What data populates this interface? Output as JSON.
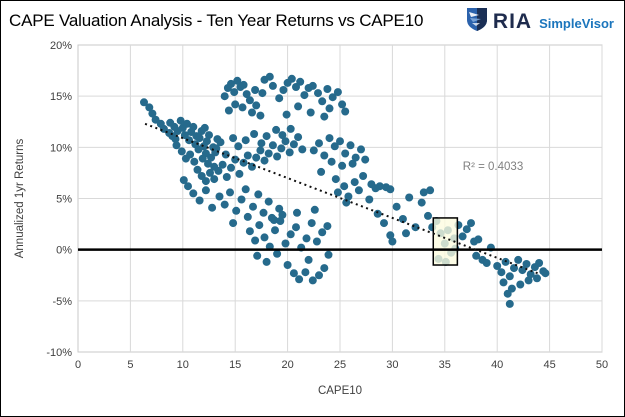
{
  "header": {
    "title": "CAPE Valuation Analysis - Ten Year Returns vs CAPE10",
    "brand": {
      "name": "RIA",
      "product": "SimpleVisor"
    }
  },
  "colors": {
    "point": "#266A8C",
    "grid": "#D9D9D9",
    "plot_border": "#C9C9C9",
    "axis_text": "#404040",
    "annotation": "#7F7F7F",
    "zero_line": "#000000",
    "trendline": "#111111",
    "box_fill": "#FCFCDF",
    "brand_navy": "#1E2B4D",
    "brand_blue": "#1B75BC"
  },
  "chart_data": {
    "type": "scatter",
    "title": "CAPE Valuation Analysis - Ten Year Returns vs CAPE10",
    "xlabel": "CAPE10",
    "ylabel": "Annualized 1yr Returns",
    "xlim": [
      0,
      50
    ],
    "ylim": [
      -10,
      20
    ],
    "xticks": [
      0,
      5,
      10,
      15,
      20,
      25,
      30,
      35,
      40,
      45,
      50
    ],
    "yticks": [
      -10,
      -5,
      0,
      5,
      10,
      15,
      20
    ],
    "ytick_suffix": "%",
    "grid": true,
    "legend": "none",
    "r_squared": 0.4033,
    "annotation": {
      "text": "R² = 0.4033",
      "x": 39.6,
      "y": 8.2
    },
    "trendline": {
      "style": "dotted",
      "x1": 6.4,
      "y1": 12.3,
      "x2": 44.1,
      "y2": -2.4
    },
    "zero_line": 0,
    "highlight_box": {
      "x1": 33.9,
      "x2": 36.2,
      "y1": -1.5,
      "y2": 3.1,
      "opacity": 0.78
    },
    "point_color": "#266A8C",
    "points": [
      [
        6.3,
        14.4
      ],
      [
        6.8,
        13.9
      ],
      [
        7.1,
        13.3
      ],
      [
        7.4,
        12.7
      ],
      [
        7.9,
        12.3
      ],
      [
        8.2,
        11.8
      ],
      [
        8.7,
        11.4
      ],
      [
        9.0,
        11.1
      ],
      [
        9.3,
        10.8
      ],
      [
        8.8,
        12.4
      ],
      [
        9.2,
        12.0
      ],
      [
        9.5,
        11.6
      ],
      [
        9.8,
        12.6
      ],
      [
        10.0,
        11.9
      ],
      [
        10.2,
        11.2
      ],
      [
        10.4,
        12.3
      ],
      [
        10.6,
        10.7
      ],
      [
        10.8,
        11.5
      ],
      [
        11.0,
        12.0
      ],
      [
        11.2,
        10.3
      ],
      [
        11.3,
        11.1
      ],
      [
        11.5,
        9.8
      ],
      [
        11.6,
        10.9
      ],
      [
        11.8,
        11.6
      ],
      [
        12.0,
        10.1
      ],
      [
        12.2,
        9.4
      ],
      [
        12.3,
        10.6
      ],
      [
        12.5,
        11.2
      ],
      [
        12.7,
        9.0
      ],
      [
        12.9,
        10.0
      ],
      [
        13.1,
        9.5
      ],
      [
        13.3,
        10.8
      ],
      [
        9.4,
        10.2
      ],
      [
        9.9,
        9.6
      ],
      [
        10.3,
        8.9
      ],
      [
        10.7,
        9.3
      ],
      [
        11.1,
        8.6
      ],
      [
        11.9,
        8.9
      ],
      [
        12.4,
        8.4
      ],
      [
        13.0,
        8.1
      ],
      [
        12.1,
        11.9
      ],
      [
        14.0,
        15.0
      ],
      [
        14.3,
        15.8
      ],
      [
        14.6,
        16.2
      ],
      [
        14.9,
        15.4
      ],
      [
        15.2,
        16.5
      ],
      [
        15.5,
        15.9
      ],
      [
        15.8,
        16.1
      ],
      [
        16.1,
        15.2
      ],
      [
        16.4,
        14.6
      ],
      [
        15.0,
        14.2
      ],
      [
        14.4,
        13.6
      ],
      [
        15.7,
        13.9
      ],
      [
        16.6,
        13.4
      ],
      [
        17.0,
        14.1
      ],
      [
        17.4,
        13.1
      ],
      [
        16.9,
        15.6
      ],
      [
        17.8,
        16.6
      ],
      [
        18.3,
        16.9
      ],
      [
        18.6,
        16.0
      ],
      [
        17.6,
        15.3
      ],
      [
        19.2,
        14.8
      ],
      [
        19.6,
        15.6
      ],
      [
        20.0,
        16.3
      ],
      [
        20.4,
        16.7
      ],
      [
        20.8,
        15.9
      ],
      [
        21.2,
        16.4
      ],
      [
        21.6,
        15.1
      ],
      [
        22.0,
        15.8
      ],
      [
        22.4,
        16.0
      ],
      [
        22.9,
        15.3
      ],
      [
        23.3,
        14.5
      ],
      [
        23.8,
        15.7
      ],
      [
        24.3,
        14.9
      ],
      [
        24.8,
        15.4
      ],
      [
        25.2,
        14.2
      ],
      [
        21.0,
        14.0
      ],
      [
        22.2,
        13.4
      ],
      [
        23.5,
        13.0
      ],
      [
        24.0,
        13.8
      ],
      [
        25.5,
        13.5
      ],
      [
        19.9,
        13.2
      ],
      [
        11.4,
        7.8
      ],
      [
        11.8,
        7.2
      ],
      [
        12.2,
        6.7
      ],
      [
        12.6,
        7.5
      ],
      [
        13.0,
        6.9
      ],
      [
        13.4,
        7.7
      ],
      [
        13.8,
        8.3
      ],
      [
        14.2,
        7.1
      ],
      [
        14.6,
        8.0
      ],
      [
        15.0,
        8.8
      ],
      [
        15.4,
        7.4
      ],
      [
        15.8,
        8.5
      ],
      [
        16.2,
        9.2
      ],
      [
        16.6,
        8.1
      ],
      [
        17.0,
        9.0
      ],
      [
        17.4,
        9.7
      ],
      [
        17.8,
        8.7
      ],
      [
        18.2,
        9.4
      ],
      [
        18.6,
        10.2
      ],
      [
        19.0,
        9.1
      ],
      [
        19.4,
        9.9
      ],
      [
        19.8,
        10.6
      ],
      [
        20.2,
        9.5
      ],
      [
        20.6,
        10.3
      ],
      [
        21.0,
        11.0
      ],
      [
        21.4,
        9.8
      ],
      [
        13.2,
        9.9
      ],
      [
        13.6,
        10.5
      ],
      [
        14.1,
        9.3
      ],
      [
        14.8,
        10.9
      ],
      [
        15.3,
        10.1
      ],
      [
        16.0,
        10.7
      ],
      [
        16.8,
        11.3
      ],
      [
        17.5,
        10.4
      ],
      [
        18.0,
        11.1
      ],
      [
        18.9,
        11.7
      ],
      [
        19.5,
        11.2
      ],
      [
        20.3,
        11.8
      ],
      [
        13.5,
        5.2
      ],
      [
        14.0,
        4.4
      ],
      [
        14.5,
        5.6
      ],
      [
        15.1,
        3.8
      ],
      [
        15.6,
        4.9
      ],
      [
        16.2,
        3.2
      ],
      [
        16.7,
        4.2
      ],
      [
        17.2,
        5.4
      ],
      [
        17.7,
        3.6
      ],
      [
        18.2,
        4.7
      ],
      [
        18.7,
        2.9
      ],
      [
        19.2,
        4.0
      ],
      [
        14.8,
        2.6
      ],
      [
        16.0,
        5.9
      ],
      [
        10.5,
        6.2
      ],
      [
        11.0,
        5.5
      ],
      [
        11.6,
        4.8
      ],
      [
        12.2,
        5.8
      ],
      [
        12.8,
        4.1
      ],
      [
        10.1,
        6.8
      ],
      [
        16.4,
        1.8
      ],
      [
        16.9,
        0.9
      ],
      [
        17.3,
        2.4
      ],
      [
        17.8,
        1.2
      ],
      [
        18.3,
        0.3
      ],
      [
        18.8,
        1.9
      ],
      [
        19.3,
        2.8
      ],
      [
        19.8,
        0.6
      ],
      [
        20.3,
        1.5
      ],
      [
        20.8,
        2.2
      ],
      [
        21.3,
        0.2
      ],
      [
        21.8,
        1.1
      ],
      [
        22.3,
        2.6
      ],
      [
        22.8,
        0.8
      ],
      [
        23.3,
        1.7
      ],
      [
        23.8,
        2.3
      ],
      [
        17.1,
        -0.6
      ],
      [
        18.0,
        -1.2
      ],
      [
        19.0,
        -0.4
      ],
      [
        20.0,
        -1.5
      ],
      [
        20.6,
        -2.3
      ],
      [
        21.1,
        -2.9
      ],
      [
        21.7,
        -2.2
      ],
      [
        22.4,
        -3.0
      ],
      [
        23.0,
        -2.5
      ],
      [
        23.5,
        -1.8
      ],
      [
        22.0,
        -1.0
      ],
      [
        19.5,
        3.4
      ],
      [
        20.9,
        3.6
      ],
      [
        22.6,
        3.9
      ],
      [
        23.9,
        -0.5
      ],
      [
        18.5,
        3.1
      ],
      [
        22.5,
        9.7
      ],
      [
        23.0,
        10.4
      ],
      [
        23.5,
        9.2
      ],
      [
        24.0,
        10.9
      ],
      [
        24.5,
        10.1
      ],
      [
        25.0,
        10.6
      ],
      [
        25.5,
        9.4
      ],
      [
        26.0,
        10.2
      ],
      [
        26.5,
        9.0
      ],
      [
        27.0,
        9.8
      ],
      [
        24.2,
        8.6
      ],
      [
        25.2,
        8.2
      ],
      [
        26.2,
        8.4
      ],
      [
        27.4,
        8.8
      ],
      [
        23.2,
        7.6
      ],
      [
        24.6,
        6.9
      ],
      [
        25.4,
        6.2
      ],
      [
        26.4,
        6.6
      ],
      [
        27.2,
        7.2
      ],
      [
        28.0,
        6.4
      ],
      [
        24.8,
        5.6
      ],
      [
        25.8,
        5.2
      ],
      [
        26.8,
        5.8
      ],
      [
        27.8,
        4.9
      ],
      [
        25.6,
        4.6
      ],
      [
        28.4,
        6.0
      ],
      [
        28.8,
        6.2
      ],
      [
        29.4,
        6.1
      ],
      [
        29.8,
        5.9
      ],
      [
        28.6,
        3.5
      ],
      [
        29.2,
        2.6
      ],
      [
        29.8,
        1.4
      ],
      [
        30.4,
        4.2
      ],
      [
        31.0,
        3.0
      ],
      [
        31.6,
        5.1
      ],
      [
        32.2,
        2.2
      ],
      [
        32.8,
        4.6
      ],
      [
        33.4,
        3.3
      ],
      [
        30.0,
        0.8
      ],
      [
        31.3,
        1.6
      ],
      [
        33.0,
        5.6
      ],
      [
        33.6,
        5.8
      ],
      [
        33.8,
        2.2
      ],
      [
        34.2,
        2.8
      ],
      [
        34.6,
        1.6
      ],
      [
        35.0,
        0.6
      ],
      [
        35.3,
        1.9
      ],
      [
        35.6,
        -0.3
      ],
      [
        35.9,
        1.1
      ],
      [
        36.3,
        2.4
      ],
      [
        36.7,
        1.3
      ],
      [
        37.1,
        2.0
      ],
      [
        37.5,
        2.6
      ],
      [
        34.4,
        -0.9
      ],
      [
        35.1,
        -1.2
      ],
      [
        36.0,
        0.1
      ],
      [
        37.8,
        0.8
      ],
      [
        38.2,
        1.0
      ],
      [
        38.6,
        -1.0
      ],
      [
        39.0,
        -1.3
      ],
      [
        39.4,
        0.2
      ],
      [
        38.0,
        -0.6
      ],
      [
        40.0,
        -1.6
      ],
      [
        40.4,
        -2.2
      ],
      [
        40.8,
        -1.2
      ],
      [
        41.2,
        -2.6
      ],
      [
        41.6,
        -1.8
      ],
      [
        42.0,
        -1.0
      ],
      [
        42.4,
        -2.0
      ],
      [
        42.8,
        -1.4
      ],
      [
        43.2,
        -2.4
      ],
      [
        43.6,
        -1.7
      ],
      [
        44.0,
        -1.3
      ],
      [
        44.4,
        -2.1
      ],
      [
        40.6,
        -3.2
      ],
      [
        41.4,
        -3.8
      ],
      [
        42.2,
        -3.4
      ],
      [
        43.0,
        -3.0
      ],
      [
        41.0,
        -4.3
      ],
      [
        43.8,
        -2.8
      ],
      [
        44.6,
        -2.3
      ],
      [
        41.2,
        -5.3
      ]
    ]
  }
}
